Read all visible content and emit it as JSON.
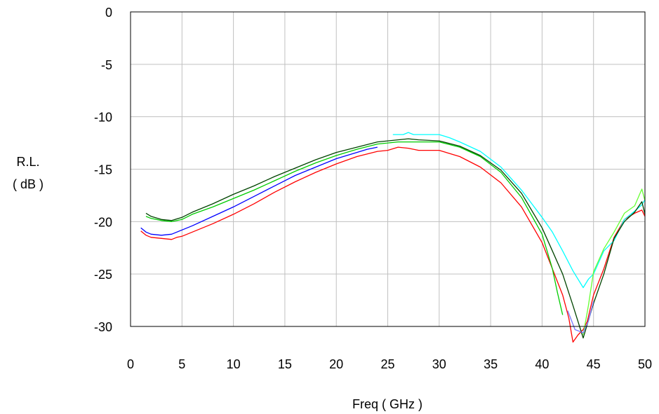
{
  "chart_data": {
    "type": "line",
    "title": "",
    "xlabel": "Freq ( GHz )",
    "ylabel_line1": "R.L.",
    "ylabel_line2": "( dB )",
    "xlim": [
      0,
      50
    ],
    "ylim": [
      -30,
      0
    ],
    "x_ticks": [
      0,
      5,
      10,
      15,
      20,
      25,
      30,
      35,
      40,
      45,
      50
    ],
    "y_ticks": [
      0,
      -5,
      -10,
      -15,
      -20,
      -25,
      -30
    ],
    "x_tick_labels": [
      "0",
      "5",
      "10",
      "15",
      "20",
      "25",
      "30",
      "35",
      "40",
      "45",
      "50"
    ],
    "y_tick_labels": [
      "0",
      "-5",
      "-10",
      "-15",
      "-20",
      "-25",
      "-30"
    ],
    "grid": true,
    "legend": "none",
    "series": [
      {
        "color": "#ff0000",
        "points": [
          [
            1,
            -20.9
          ],
          [
            1.5,
            -21.3
          ],
          [
            2,
            -21.5
          ],
          [
            3,
            -21.6
          ],
          [
            4,
            -21.7
          ],
          [
            4.5,
            -21.5
          ],
          [
            5,
            -21.4
          ],
          [
            6,
            -21.0
          ],
          [
            8,
            -20.2
          ],
          [
            10,
            -19.3
          ],
          [
            12,
            -18.3
          ],
          [
            14,
            -17.2
          ],
          [
            16,
            -16.2
          ],
          [
            18,
            -15.3
          ],
          [
            20,
            -14.5
          ],
          [
            22,
            -13.8
          ],
          [
            24,
            -13.3
          ],
          [
            25,
            -13.2
          ],
          [
            26,
            -12.9
          ],
          [
            27,
            -13.0
          ],
          [
            28,
            -13.2
          ],
          [
            30,
            -13.2
          ],
          [
            32,
            -13.8
          ],
          [
            34,
            -14.8
          ],
          [
            36,
            -16.3
          ],
          [
            38,
            -18.6
          ],
          [
            40,
            -22.0
          ],
          [
            41,
            -24.5
          ],
          [
            42,
            -27.0
          ],
          [
            42.6,
            -29.2
          ],
          [
            43,
            -31.5
          ],
          [
            43.5,
            -30.8
          ],
          [
            44,
            -30.3
          ],
          [
            44.4,
            -29.5
          ],
          [
            45,
            -27.0
          ],
          [
            46,
            -24.5
          ],
          [
            47,
            -21.5
          ],
          [
            48,
            -19.8
          ],
          [
            49,
            -19.2
          ],
          [
            49.7,
            -18.9
          ],
          [
            50,
            -19.5
          ]
        ]
      },
      {
        "color": "#0000ff",
        "points": [
          [
            1,
            -20.6
          ],
          [
            1.5,
            -21.0
          ],
          [
            2,
            -21.2
          ],
          [
            3,
            -21.3
          ],
          [
            4,
            -21.2
          ],
          [
            5,
            -20.8
          ],
          [
            6,
            -20.4
          ],
          [
            8,
            -19.5
          ],
          [
            10,
            -18.6
          ],
          [
            12,
            -17.6
          ],
          [
            14,
            -16.6
          ],
          [
            16,
            -15.6
          ],
          [
            18,
            -14.8
          ],
          [
            20,
            -14.0
          ],
          [
            22,
            -13.4
          ],
          [
            23,
            -13.1
          ],
          [
            24,
            -12.9
          ]
        ]
      },
      {
        "color": "#00ffff",
        "points": [
          [
            25.5,
            -11.7
          ],
          [
            26.5,
            -11.7
          ],
          [
            27,
            -11.5
          ],
          [
            27.5,
            -11.7
          ],
          [
            29,
            -11.7
          ],
          [
            30,
            -11.7
          ],
          [
            31,
            -12.0
          ],
          [
            32,
            -12.4
          ],
          [
            34,
            -13.3
          ],
          [
            36,
            -14.8
          ],
          [
            38,
            -17.0
          ],
          [
            40,
            -19.6
          ],
          [
            41,
            -21.0
          ],
          [
            42,
            -22.8
          ],
          [
            43,
            -24.7
          ],
          [
            44,
            -26.3
          ],
          [
            44.5,
            -25.5
          ],
          [
            45,
            -25.0
          ],
          [
            46,
            -22.8
          ],
          [
            47,
            -21.8
          ],
          [
            48,
            -19.8
          ],
          [
            49,
            -19.0
          ],
          [
            49.7,
            -18.4
          ],
          [
            50,
            -17.9
          ]
        ]
      },
      {
        "color": "#00cc00",
        "points": [
          [
            1.5,
            -19.5
          ],
          [
            2,
            -19.7
          ],
          [
            3,
            -19.9
          ],
          [
            4,
            -20.0
          ],
          [
            5,
            -19.8
          ],
          [
            6,
            -19.3
          ],
          [
            8,
            -18.6
          ],
          [
            10,
            -17.8
          ],
          [
            12,
            -17.0
          ],
          [
            14,
            -16.1
          ],
          [
            16,
            -15.2
          ],
          [
            18,
            -14.4
          ],
          [
            20,
            -13.7
          ],
          [
            22,
            -13.1
          ],
          [
            24,
            -12.6
          ],
          [
            26,
            -12.4
          ],
          [
            28,
            -12.4
          ],
          [
            30,
            -12.4
          ],
          [
            32,
            -12.9
          ],
          [
            34,
            -13.8
          ],
          [
            36,
            -15.3
          ],
          [
            38,
            -17.7
          ],
          [
            40,
            -21.2
          ],
          [
            41,
            -24.5
          ],
          [
            41.5,
            -26.8
          ],
          [
            42,
            -28.9
          ]
        ]
      },
      {
        "color": "#66ff33",
        "points": [
          [
            44,
            -30.8
          ],
          [
            44.5,
            -28.0
          ],
          [
            45,
            -24.8
          ],
          [
            46,
            -22.6
          ],
          [
            47,
            -21.0
          ],
          [
            48,
            -19.2
          ],
          [
            49,
            -18.5
          ],
          [
            49.7,
            -16.9
          ],
          [
            50,
            -18.0
          ]
        ]
      },
      {
        "color": "#004400",
        "points": [
          [
            1.5,
            -19.2
          ],
          [
            2,
            -19.5
          ],
          [
            3,
            -19.8
          ],
          [
            4,
            -19.9
          ],
          [
            5,
            -19.6
          ],
          [
            6,
            -19.1
          ],
          [
            8,
            -18.3
          ],
          [
            10,
            -17.4
          ],
          [
            12,
            -16.6
          ],
          [
            14,
            -15.7
          ],
          [
            16,
            -14.9
          ],
          [
            18,
            -14.1
          ],
          [
            20,
            -13.4
          ],
          [
            22,
            -12.9
          ],
          [
            24,
            -12.4
          ],
          [
            26,
            -12.2
          ],
          [
            27,
            -12.1
          ],
          [
            28,
            -12.2
          ],
          [
            30,
            -12.3
          ],
          [
            32,
            -12.8
          ],
          [
            34,
            -13.7
          ],
          [
            36,
            -15.1
          ],
          [
            38,
            -17.3
          ],
          [
            40,
            -20.6
          ],
          [
            41,
            -22.8
          ],
          [
            42,
            -25.0
          ],
          [
            43,
            -28.0
          ],
          [
            44,
            -31.1
          ],
          [
            45,
            -27.8
          ],
          [
            46,
            -25.0
          ],
          [
            47,
            -21.6
          ],
          [
            48,
            -20.0
          ],
          [
            49,
            -19.1
          ],
          [
            49.7,
            -18.1
          ],
          [
            50,
            -19.3
          ]
        ]
      },
      {
        "color": "#7777ff",
        "points": [
          [
            42.5,
            -28.5
          ],
          [
            43.2,
            -30.3
          ],
          [
            44,
            -30.6
          ],
          [
            44.5,
            -29.5
          ],
          [
            45,
            -27.6
          ]
        ]
      }
    ]
  }
}
